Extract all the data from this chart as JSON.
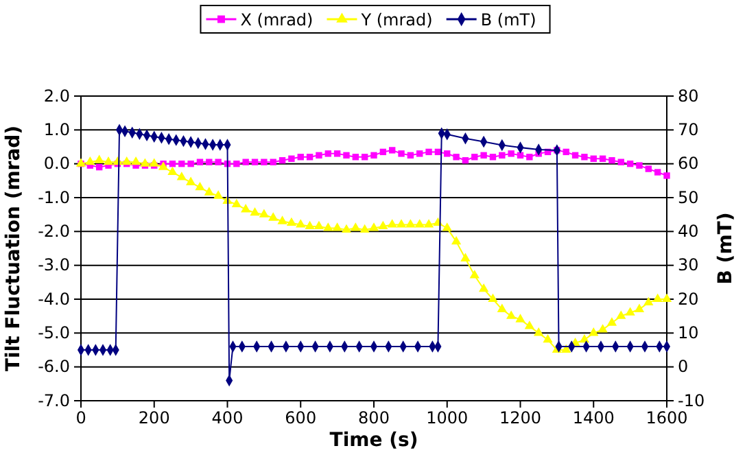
{
  "chart_data": {
    "type": "line",
    "xlabel": "Time (s)",
    "ylabel": "Tilt Fluctuation (mrad)",
    "y2label": "B (mT)",
    "xlim": [
      0,
      1600
    ],
    "xticks": [
      0,
      200,
      400,
      600,
      800,
      1000,
      1200,
      1400,
      1600
    ],
    "ylim": [
      -7,
      2
    ],
    "yticks": [
      {
        "value": -7,
        "label": "-7.0"
      },
      {
        "value": -6,
        "label": "-6.0"
      },
      {
        "value": -5,
        "label": "-5.0"
      },
      {
        "value": -4,
        "label": "-4.0"
      },
      {
        "value": -3,
        "label": "-3.0"
      },
      {
        "value": -2,
        "label": "-2.0"
      },
      {
        "value": -1,
        "label": "-1.0"
      },
      {
        "value": 0,
        "label": "0.0"
      },
      {
        "value": 1,
        "label": "1.0"
      },
      {
        "value": 2,
        "label": "2.0"
      }
    ],
    "y2lim": [
      -10,
      80
    ],
    "y2ticks": [
      -10,
      0,
      10,
      20,
      30,
      40,
      50,
      60,
      70,
      80
    ],
    "grid": "y",
    "legend": "top",
    "x": [
      0,
      25,
      50,
      75,
      100,
      125,
      150,
      175,
      200,
      225,
      250,
      275,
      300,
      325,
      350,
      375,
      400,
      425,
      450,
      475,
      500,
      525,
      550,
      575,
      600,
      625,
      650,
      675,
      700,
      725,
      750,
      775,
      800,
      825,
      850,
      875,
      900,
      925,
      950,
      975,
      1000,
      1025,
      1050,
      1075,
      1100,
      1125,
      1150,
      1175,
      1200,
      1225,
      1250,
      1275,
      1300,
      1325,
      1350,
      1375,
      1400,
      1425,
      1450,
      1475,
      1500,
      1525,
      1550,
      1575,
      1600
    ],
    "series": [
      {
        "name": "X (mrad)",
        "color": "#ff00ff",
        "marker": "square",
        "values": [
          0,
          -0.05,
          -0.1,
          -0.05,
          0,
          0,
          -0.05,
          -0.05,
          -0.05,
          0,
          0,
          0,
          0,
          0.05,
          0.05,
          0.05,
          0,
          0,
          0.05,
          0.05,
          0.05,
          0.05,
          0.1,
          0.15,
          0.2,
          0.2,
          0.25,
          0.3,
          0.3,
          0.25,
          0.2,
          0.2,
          0.25,
          0.35,
          0.4,
          0.3,
          0.25,
          0.3,
          0.35,
          0.35,
          0.3,
          0.2,
          0.1,
          0.2,
          0.25,
          0.2,
          0.25,
          0.3,
          0.25,
          0.2,
          0.3,
          0.35,
          0.4,
          0.35,
          0.25,
          0.2,
          0.15,
          0.15,
          0.1,
          0.05,
          0,
          -0.05,
          -0.15,
          -0.25,
          -0.35
        ]
      },
      {
        "name": "Y (mrad)",
        "color": "#ffff00",
        "marker": "triangle",
        "values": [
          0,
          0.05,
          0.1,
          0.05,
          0.05,
          0.05,
          0.05,
          0,
          0,
          -0.1,
          -0.25,
          -0.4,
          -0.55,
          -0.7,
          -0.85,
          -0.95,
          -1.1,
          -1.2,
          -1.35,
          -1.45,
          -1.5,
          -1.6,
          -1.7,
          -1.75,
          -1.8,
          -1.85,
          -1.85,
          -1.9,
          -1.9,
          -1.95,
          -1.9,
          -1.95,
          -1.9,
          -1.85,
          -1.8,
          -1.8,
          -1.8,
          -1.8,
          -1.8,
          -1.75,
          -1.9,
          -2.3,
          -2.8,
          -3.3,
          -3.7,
          -4,
          -4.3,
          -4.5,
          -4.6,
          -4.8,
          -5,
          -5.2,
          -5.5,
          -5.5,
          -5.3,
          -5.2,
          -5,
          -4.9,
          -4.7,
          -4.5,
          -4.4,
          -4.3,
          -4.1,
          -4,
          -4
        ]
      },
      {
        "name": "B (mT)",
        "color": "#000080",
        "marker": "diamond",
        "axis": "y2",
        "x": [
          0,
          20,
          40,
          60,
          80,
          95,
          105,
          120,
          140,
          160,
          180,
          200,
          220,
          240,
          260,
          280,
          300,
          320,
          340,
          360,
          380,
          400,
          405,
          415,
          440,
          480,
          520,
          560,
          600,
          640,
          680,
          720,
          760,
          800,
          840,
          880,
          920,
          960,
          975,
          985,
          1000,
          1050,
          1100,
          1150,
          1200,
          1250,
          1300,
          1305,
          1340,
          1380,
          1420,
          1460,
          1500,
          1540,
          1580,
          1600
        ],
        "values": [
          5,
          5,
          5,
          5,
          5,
          5,
          70,
          69.6,
          69.2,
          68.8,
          68.4,
          68,
          67.7,
          67.3,
          67,
          66.7,
          66.4,
          66.1,
          65.8,
          65.6,
          65.6,
          65.6,
          -4,
          6,
          6,
          6,
          6,
          6,
          6,
          6,
          6,
          6,
          6,
          6,
          6,
          6,
          6,
          6,
          6,
          69,
          68.7,
          67.5,
          66.5,
          65.5,
          64.8,
          64.2,
          64,
          6,
          6,
          6,
          6,
          6,
          6,
          6,
          6,
          6
        ]
      }
    ]
  }
}
